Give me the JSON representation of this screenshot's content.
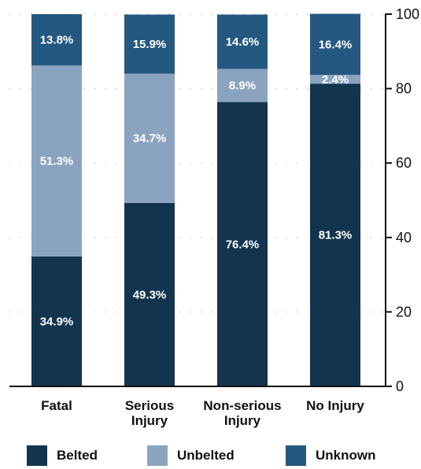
{
  "chart_data": {
    "type": "bar",
    "stacked": true,
    "categories": [
      [
        "Fatal"
      ],
      [
        "Serious",
        "Injury"
      ],
      [
        "Non-serious",
        "Injury"
      ],
      [
        "No Injury"
      ]
    ],
    "series": [
      {
        "name": "Belted",
        "color": "#12344f",
        "values": [
          34.9,
          49.3,
          76.4,
          81.3
        ]
      },
      {
        "name": "Unbelted",
        "color": "#8aa4c0",
        "values": [
          51.3,
          34.7,
          8.9,
          2.4
        ]
      },
      {
        "name": "Unknown",
        "color": "#245880",
        "values": [
          13.8,
          15.9,
          14.6,
          16.4
        ]
      }
    ],
    "value_labels": [
      [
        "34.9%",
        "49.3%",
        "76.4%",
        "81.3%"
      ],
      [
        "51.3%",
        "34.7%",
        "8.9%",
        "2.4%"
      ],
      [
        "13.8%",
        "15.9%",
        "14.6%",
        "16.4%"
      ]
    ],
    "ylim": [
      0,
      100
    ],
    "yticks": [
      "0",
      "20",
      "40",
      "60",
      "80",
      "100"
    ],
    "y_axis_side": "right",
    "grid": "dotted horizontal",
    "legend_position": "bottom"
  }
}
